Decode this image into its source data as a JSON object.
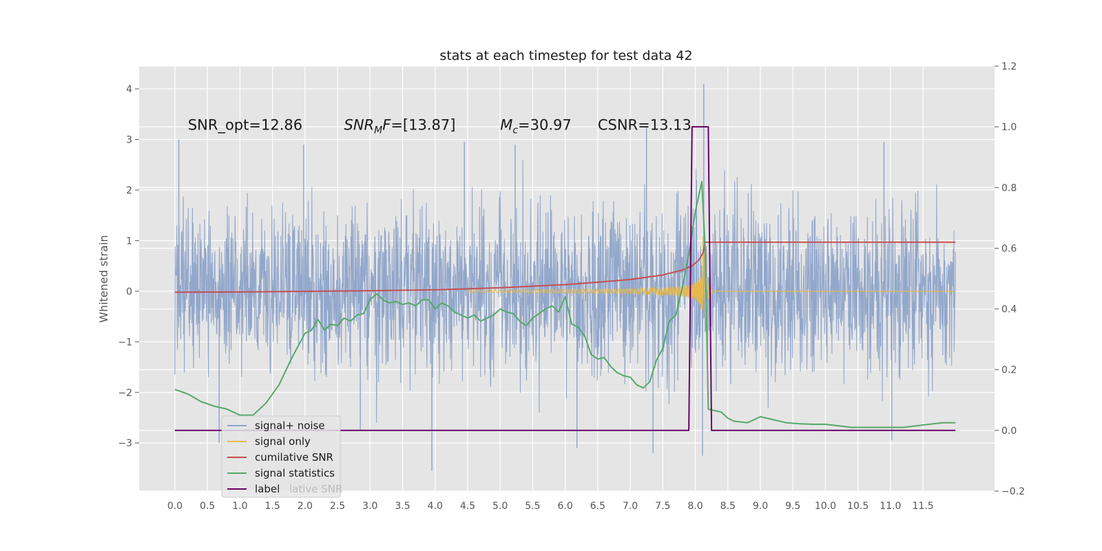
{
  "chart_data": {
    "type": "line",
    "title": "stats at each timestep for test data 42",
    "ylabel": "Whitened strain",
    "y2label": "",
    "xlim": [
      -0.55,
      12.6
    ],
    "ylim": [
      -3.95,
      4.45
    ],
    "y2lim": [
      -0.2,
      1.2
    ],
    "x_ticks": [
      "0.0",
      "0.5",
      "1.0",
      "1.5",
      "2.0",
      "2.5",
      "3.0",
      "3.5",
      "4.0",
      "4.5",
      "5.0",
      "5.5",
      "6.0",
      "6.5",
      "7.0",
      "7.5",
      "8.0",
      "8.5",
      "9.0",
      "9.5",
      "10.0",
      "10.5",
      "11.0",
      "11.5"
    ],
    "y_ticks": [
      -3,
      -2,
      -1,
      0,
      1,
      2,
      3,
      4
    ],
    "y_tick_labels": [
      "−3",
      "−2",
      "−1",
      "0",
      "1",
      "2",
      "3",
      "4"
    ],
    "y2_ticks": [
      -0.2,
      0.0,
      0.2,
      0.4,
      0.6,
      0.8,
      1.0,
      1.2
    ],
    "y2_tick_labels": [
      "−0.2",
      "0.0",
      "0.2",
      "0.4",
      "0.6",
      "0.8",
      "1.0",
      "1.2"
    ],
    "grid": true,
    "legend_position": "lower-left",
    "annotations": [
      {
        "text": "SNR_opt=12.86",
        "x": 0.2,
        "y": 3.3
      },
      {
        "text": "SNR_MF=[13.87]",
        "x": 2.6,
        "y": 3.3,
        "math": true,
        "base": "SNR",
        "sub": "M",
        "rest": "F=[13.87]"
      },
      {
        "text": "M_c=30.97",
        "x": 5.0,
        "y": 3.3,
        "math": true,
        "base": "M",
        "sub": "c",
        "rest": "=30.97"
      },
      {
        "text": "CSNR=13.13",
        "x": 6.5,
        "y": 3.3
      }
    ],
    "series": [
      {
        "name": "signal+ noise",
        "color": "#8da3c9",
        "axis": "left",
        "kind": "noise",
        "x_range": [
          0.0,
          12.0
        ],
        "amplitude_std": 0.8,
        "spikes": [
          {
            "x": 0.06,
            "y": 3.0
          },
          {
            "x": 0.68,
            "y": -3.0
          },
          {
            "x": 1.98,
            "y": 2.9
          },
          {
            "x": 3.95,
            "y": -3.55
          },
          {
            "x": 4.45,
            "y": 2.95
          },
          {
            "x": 7.25,
            "y": 3.25
          },
          {
            "x": 7.35,
            "y": -3.2
          },
          {
            "x": 8.13,
            "y": 4.1
          },
          {
            "x": 8.11,
            "y": -3.25
          },
          {
            "x": 10.9,
            "y": 2.95
          },
          {
            "x": 11.02,
            "y": -2.95
          },
          {
            "x": 6.18,
            "y": -3.1
          },
          {
            "x": 5.23,
            "y": 2.9
          },
          {
            "x": 2.85,
            "y": -2.75
          }
        ]
      },
      {
        "name": "signal only",
        "color": "#e5b94e",
        "axis": "left",
        "kind": "chirp",
        "x_range": [
          4.5,
          12.0
        ],
        "merger_x": 8.12
      },
      {
        "name": "cumilative SNR",
        "color": "#c44e52",
        "axis": "right",
        "x": [
          0.0,
          1.0,
          2.0,
          3.0,
          4.0,
          5.0,
          6.0,
          6.5,
          7.0,
          7.5,
          7.8,
          7.95,
          8.05,
          8.12,
          8.15,
          12.0
        ],
        "y": [
          0.455,
          0.456,
          0.458,
          0.46,
          0.463,
          0.47,
          0.48,
          0.488,
          0.497,
          0.512,
          0.528,
          0.542,
          0.56,
          0.585,
          0.62,
          0.62
        ]
      },
      {
        "name": "signal statistics",
        "color": "#55a868",
        "axis": "right",
        "x": [
          0.0,
          0.2,
          0.4,
          0.6,
          0.8,
          1.0,
          1.2,
          1.4,
          1.6,
          1.8,
          1.9,
          2.0,
          2.1,
          2.2,
          2.3,
          2.4,
          2.5,
          2.6,
          2.7,
          2.8,
          2.9,
          3.0,
          3.1,
          3.2,
          3.3,
          3.4,
          3.5,
          3.6,
          3.7,
          3.8,
          3.9,
          4.0,
          4.1,
          4.2,
          4.3,
          4.4,
          4.5,
          4.6,
          4.7,
          4.8,
          4.9,
          5.0,
          5.1,
          5.2,
          5.3,
          5.4,
          5.5,
          5.6,
          5.7,
          5.8,
          5.9,
          6.0,
          6.1,
          6.2,
          6.3,
          6.4,
          6.5,
          6.6,
          6.7,
          6.8,
          6.9,
          7.0,
          7.1,
          7.2,
          7.3,
          7.4,
          7.5,
          7.6,
          7.7,
          7.8,
          7.9,
          8.0,
          8.1,
          8.15,
          8.2,
          8.3,
          8.4,
          8.5,
          8.6,
          8.8,
          9.0,
          9.2,
          9.4,
          9.6,
          9.8,
          10.0,
          10.2,
          10.4,
          10.6,
          10.8,
          11.0,
          11.2,
          11.4,
          11.6,
          11.8,
          12.0
        ],
        "y": [
          0.135,
          0.12,
          0.095,
          0.08,
          0.07,
          0.05,
          0.05,
          0.09,
          0.15,
          0.24,
          0.28,
          0.32,
          0.33,
          0.365,
          0.33,
          0.35,
          0.345,
          0.37,
          0.36,
          0.38,
          0.385,
          0.43,
          0.45,
          0.43,
          0.42,
          0.425,
          0.415,
          0.42,
          0.41,
          0.43,
          0.43,
          0.4,
          0.42,
          0.41,
          0.39,
          0.38,
          0.37,
          0.38,
          0.36,
          0.37,
          0.38,
          0.4,
          0.39,
          0.385,
          0.36,
          0.345,
          0.37,
          0.385,
          0.4,
          0.41,
          0.39,
          0.44,
          0.35,
          0.34,
          0.31,
          0.25,
          0.235,
          0.24,
          0.21,
          0.19,
          0.18,
          0.175,
          0.15,
          0.14,
          0.16,
          0.23,
          0.27,
          0.36,
          0.38,
          0.47,
          0.58,
          0.72,
          0.82,
          0.6,
          0.07,
          0.065,
          0.06,
          0.04,
          0.03,
          0.025,
          0.045,
          0.035,
          0.025,
          0.022,
          0.02,
          0.02,
          0.015,
          0.01,
          0.01,
          0.01,
          0.01,
          0.01,
          0.015,
          0.02,
          0.025,
          0.025
        ]
      },
      {
        "name": "label",
        "color": "#6a006a",
        "axis": "right",
        "x": [
          0.0,
          7.9,
          7.95,
          8.2,
          8.25,
          12.0
        ],
        "y": [
          0.0,
          0.0,
          1.0,
          1.0,
          0.0,
          0.0
        ]
      }
    ],
    "legend_ghost_text": "lative SNR"
  }
}
